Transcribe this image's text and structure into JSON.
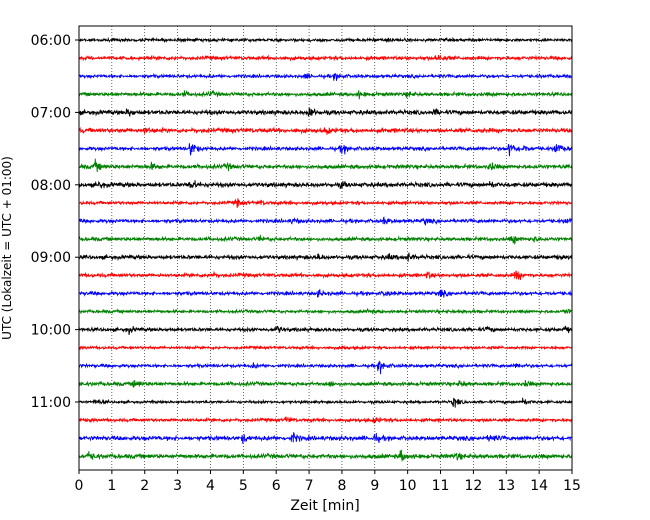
{
  "chart_data": {
    "type": "line",
    "title": "",
    "xlabel": "Zeit  [min]",
    "ylabel": "UTC (Lokalzeit = UTC + 01:00)",
    "xlim": [
      0,
      15
    ],
    "x_ticks": [
      0,
      1,
      2,
      3,
      4,
      5,
      6,
      7,
      8,
      9,
      10,
      11,
      12,
      13,
      14,
      15
    ],
    "x_tick_labels": [
      "0",
      "1",
      "2",
      "3",
      "4",
      "5",
      "6",
      "7",
      "8",
      "9",
      "10",
      "11",
      "12",
      "13",
      "14",
      "15"
    ],
    "y_tick_labels": [
      "06:00",
      "07:00",
      "08:00",
      "09:00",
      "10:00",
      "11:00"
    ],
    "grid": "vertical dotted",
    "colors": [
      "#000000",
      "#ff0000",
      "#0000ff",
      "#008000"
    ],
    "trace_interval_min": 15,
    "traces": [
      {
        "start": "06:00",
        "color": "#000000",
        "base": 1.5,
        "events": [
          [
            9.4,
            2.0
          ]
        ]
      },
      {
        "start": "06:15",
        "color": "#ff0000",
        "base": 1.8,
        "events": [
          [
            10.9,
            4.5
          ]
        ]
      },
      {
        "start": "06:30",
        "color": "#0000ff",
        "base": 1.6,
        "events": [
          [
            7.8,
            4.0
          ],
          [
            6.9,
            2.5
          ]
        ]
      },
      {
        "start": "06:45",
        "color": "#008000",
        "base": 1.8,
        "events": [
          [
            3.2,
            3.0
          ],
          [
            4.0,
            2.5
          ],
          [
            8.5,
            3.5
          ],
          [
            10.0,
            2.5
          ]
        ]
      },
      {
        "start": "07:00",
        "color": "#000000",
        "base": 2.2,
        "events": [
          [
            1.5,
            4.5
          ],
          [
            7.0,
            5.5
          ],
          [
            10.8,
            3.0
          ]
        ]
      },
      {
        "start": "07:15",
        "color": "#ff0000",
        "base": 2.2,
        "events": [
          [
            2.0,
            3.0
          ],
          [
            7.5,
            3.0
          ]
        ]
      },
      {
        "start": "07:30",
        "color": "#0000ff",
        "base": 1.8,
        "events": [
          [
            3.4,
            9.0
          ],
          [
            8.0,
            5.0
          ],
          [
            13.1,
            8.0
          ],
          [
            14.5,
            7.0
          ],
          [
            13.5,
            4.0
          ]
        ]
      },
      {
        "start": "07:45",
        "color": "#008000",
        "base": 2.0,
        "events": [
          [
            0.5,
            5.0
          ],
          [
            2.2,
            3.0
          ],
          [
            4.5,
            3.0
          ],
          [
            12.5,
            4.0
          ]
        ]
      },
      {
        "start": "08:00",
        "color": "#000000",
        "base": 2.2,
        "events": [
          [
            0.6,
            3.0
          ],
          [
            3.4,
            5.5
          ],
          [
            8.0,
            3.0
          ],
          [
            12.5,
            3.0
          ]
        ]
      },
      {
        "start": "08:15",
        "color": "#ff0000",
        "base": 1.6,
        "events": [
          [
            4.8,
            4.0
          ],
          [
            5.5,
            2.0
          ]
        ]
      },
      {
        "start": "08:30",
        "color": "#0000ff",
        "base": 1.8,
        "events": [
          [
            6.5,
            3.0
          ],
          [
            9.3,
            3.5
          ],
          [
            10.5,
            3.5
          ],
          [
            14.8,
            3.0
          ]
        ]
      },
      {
        "start": "08:45",
        "color": "#008000",
        "base": 1.8,
        "events": [
          [
            5.5,
            2.5
          ],
          [
            13.2,
            5.0
          ],
          [
            13.8,
            3.5
          ]
        ]
      },
      {
        "start": "09:00",
        "color": "#000000",
        "base": 2.0,
        "events": [
          [
            10.0,
            4.0
          ],
          [
            7.3,
            2.5
          ],
          [
            9.4,
            2.5
          ]
        ]
      },
      {
        "start": "09:15",
        "color": "#ff0000",
        "base": 1.8,
        "events": [
          [
            13.3,
            5.5
          ],
          [
            4.0,
            2.5
          ],
          [
            10.6,
            3.0
          ]
        ]
      },
      {
        "start": "09:30",
        "color": "#0000ff",
        "base": 1.8,
        "events": [
          [
            7.3,
            3.5
          ],
          [
            9.3,
            3.5
          ],
          [
            11.0,
            3.5
          ]
        ]
      },
      {
        "start": "09:45",
        "color": "#008000",
        "base": 1.5,
        "events": [
          [
            14.8,
            3.0
          ],
          [
            8.8,
            2.0
          ]
        ]
      },
      {
        "start": "10:00",
        "color": "#000000",
        "base": 1.8,
        "events": [
          [
            1.5,
            3.5
          ],
          [
            6.0,
            4.0
          ],
          [
            14.8,
            3.0
          ],
          [
            12.4,
            2.5
          ]
        ]
      },
      {
        "start": "10:15",
        "color": "#ff0000",
        "base": 1.4,
        "events": [
          [
            8.0,
            2.0
          ]
        ]
      },
      {
        "start": "10:30",
        "color": "#0000ff",
        "base": 1.6,
        "events": [
          [
            9.15,
            8.0
          ],
          [
            13.3,
            3.0
          ],
          [
            5.3,
            2.0
          ]
        ]
      },
      {
        "start": "10:45",
        "color": "#008000",
        "base": 1.8,
        "events": [
          [
            1.7,
            5.0
          ],
          [
            7.6,
            3.0
          ],
          [
            11.6,
            3.0
          ],
          [
            13.6,
            2.5
          ]
        ]
      },
      {
        "start": "11:00",
        "color": "#000000",
        "base": 1.3,
        "events": [
          [
            0.5,
            3.0
          ],
          [
            11.4,
            5.5
          ],
          [
            13.5,
            4.5
          ]
        ]
      },
      {
        "start": "11:15",
        "color": "#ff0000",
        "base": 1.6,
        "events": [
          [
            6.3,
            3.0
          ],
          [
            9.0,
            3.0
          ]
        ]
      },
      {
        "start": "11:30",
        "color": "#0000ff",
        "base": 2.2,
        "events": [
          [
            5.0,
            4.0
          ],
          [
            6.5,
            5.0
          ],
          [
            9.0,
            4.0
          ],
          [
            12.5,
            4.0
          ]
        ]
      },
      {
        "start": "11:45",
        "color": "#008000",
        "base": 2.2,
        "events": [
          [
            0.3,
            4.5
          ],
          [
            9.8,
            5.5
          ],
          [
            11.5,
            3.0
          ]
        ]
      }
    ]
  }
}
